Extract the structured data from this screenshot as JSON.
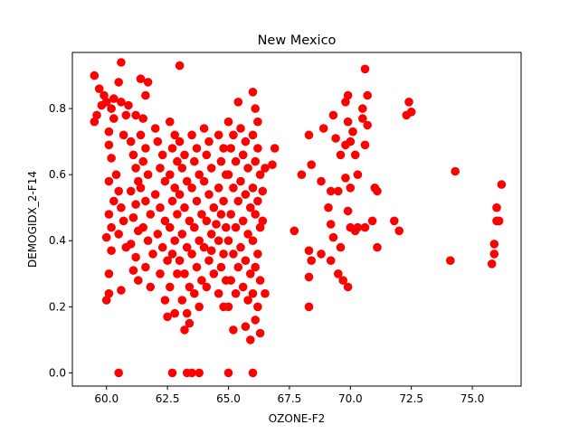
{
  "chart_data": {
    "type": "scatter",
    "title": "New Mexico",
    "xlabel": "OZONE-F2",
    "ylabel": "DEMOGIDX_2-F14",
    "xlim": [
      58.6,
      77.0
    ],
    "ylim": [
      -0.04,
      0.97
    ],
    "x_ticks": [
      60.0,
      62.5,
      65.0,
      67.5,
      70.0,
      72.5,
      75.0
    ],
    "x_tick_labels": [
      "60.0",
      "62.5",
      "65.0",
      "67.5",
      "70.0",
      "72.5",
      "75.0"
    ],
    "y_ticks": [
      0.0,
      0.2,
      0.4,
      0.6,
      0.8
    ],
    "y_tick_labels": [
      "0.0",
      "0.2",
      "0.4",
      "0.6",
      "0.8"
    ],
    "grid": false,
    "legend": "none",
    "marker_color": "#ff0000",
    "series": [
      {
        "points": [
          [
            59.5,
            0.9
          ],
          [
            59.6,
            0.78
          ],
          [
            59.7,
            0.86
          ],
          [
            59.8,
            0.81
          ],
          [
            59.9,
            0.84
          ],
          [
            60.0,
            0.82
          ],
          [
            60.2,
            0.8
          ],
          [
            60.3,
            0.83
          ],
          [
            60.5,
            0.88
          ],
          [
            60.6,
            0.94
          ],
          [
            60.3,
            0.77
          ],
          [
            60.1,
            0.69
          ],
          [
            60.8,
            0.78
          ],
          [
            60.9,
            0.81
          ],
          [
            60.7,
            0.72
          ],
          [
            61.2,
            0.78
          ],
          [
            61.4,
            0.89
          ],
          [
            61.6,
            0.84
          ],
          [
            61.7,
            0.88
          ],
          [
            61.5,
            0.77
          ],
          [
            63.0,
            0.93
          ],
          [
            60.6,
            0.82
          ],
          [
            59.5,
            0.76
          ],
          [
            60.1,
            0.73
          ],
          [
            60.2,
            0.65
          ],
          [
            60.1,
            0.58
          ],
          [
            60.3,
            0.52
          ],
          [
            60.1,
            0.48
          ],
          [
            60.2,
            0.44
          ],
          [
            60.0,
            0.41
          ],
          [
            60.2,
            0.37
          ],
          [
            60.1,
            0.3
          ],
          [
            60.1,
            0.24
          ],
          [
            60.0,
            0.22
          ],
          [
            60.4,
            0.6
          ],
          [
            60.5,
            0.55
          ],
          [
            60.6,
            0.5
          ],
          [
            60.7,
            0.46
          ],
          [
            60.5,
            0.42
          ],
          [
            60.8,
            0.38
          ],
          [
            60.6,
            0.25
          ],
          [
            61.0,
            0.7
          ],
          [
            61.1,
            0.66
          ],
          [
            61.2,
            0.62
          ],
          [
            61.3,
            0.58
          ],
          [
            61.0,
            0.55
          ],
          [
            61.2,
            0.51
          ],
          [
            61.1,
            0.47
          ],
          [
            61.3,
            0.43
          ],
          [
            61.0,
            0.39
          ],
          [
            61.2,
            0.35
          ],
          [
            61.1,
            0.31
          ],
          [
            61.3,
            0.28
          ],
          [
            61.4,
            0.72
          ],
          [
            61.6,
            0.68
          ],
          [
            61.5,
            0.64
          ],
          [
            61.7,
            0.6
          ],
          [
            61.4,
            0.56
          ],
          [
            61.6,
            0.52
          ],
          [
            61.8,
            0.48
          ],
          [
            61.5,
            0.44
          ],
          [
            61.7,
            0.4
          ],
          [
            61.9,
            0.36
          ],
          [
            61.6,
            0.32
          ],
          [
            61.8,
            0.26
          ],
          [
            62.0,
            0.74
          ],
          [
            62.1,
            0.7
          ],
          [
            62.3,
            0.66
          ],
          [
            62.2,
            0.62
          ],
          [
            62.4,
            0.58
          ],
          [
            62.0,
            0.54
          ],
          [
            62.2,
            0.5
          ],
          [
            62.4,
            0.46
          ],
          [
            62.1,
            0.42
          ],
          [
            62.3,
            0.38
          ],
          [
            62.5,
            0.34
          ],
          [
            62.2,
            0.3
          ],
          [
            62.4,
            0.22
          ],
          [
            62.6,
            0.76
          ],
          [
            62.8,
            0.72
          ],
          [
            62.7,
            0.68
          ],
          [
            62.9,
            0.64
          ],
          [
            62.6,
            0.6
          ],
          [
            62.8,
            0.56
          ],
          [
            62.7,
            0.52
          ],
          [
            62.9,
            0.48
          ],
          [
            62.6,
            0.44
          ],
          [
            62.8,
            0.4
          ],
          [
            62.7,
            0.36
          ],
          [
            62.9,
            0.3
          ],
          [
            62.6,
            0.26
          ],
          [
            62.8,
            0.18
          ],
          [
            62.5,
            0.17
          ],
          [
            63.0,
            0.7
          ],
          [
            63.2,
            0.66
          ],
          [
            63.1,
            0.62
          ],
          [
            63.3,
            0.58
          ],
          [
            63.0,
            0.54
          ],
          [
            63.2,
            0.5
          ],
          [
            63.4,
            0.46
          ],
          [
            63.1,
            0.42
          ],
          [
            63.3,
            0.38
          ],
          [
            63.0,
            0.34
          ],
          [
            63.2,
            0.3
          ],
          [
            63.4,
            0.26
          ],
          [
            63.1,
            0.22
          ],
          [
            63.3,
            0.18
          ],
          [
            63.2,
            0.13
          ],
          [
            63.5,
            0.72
          ],
          [
            63.7,
            0.68
          ],
          [
            63.6,
            0.64
          ],
          [
            63.8,
            0.6
          ],
          [
            63.5,
            0.56
          ],
          [
            63.7,
            0.52
          ],
          [
            63.9,
            0.48
          ],
          [
            63.6,
            0.44
          ],
          [
            63.8,
            0.4
          ],
          [
            63.5,
            0.36
          ],
          [
            63.7,
            0.32
          ],
          [
            63.9,
            0.28
          ],
          [
            63.6,
            0.24
          ],
          [
            63.8,
            0.2
          ],
          [
            63.4,
            0.15
          ],
          [
            64.0,
            0.74
          ],
          [
            64.2,
            0.7
          ],
          [
            64.1,
            0.66
          ],
          [
            64.3,
            0.62
          ],
          [
            64.0,
            0.58
          ],
          [
            64.2,
            0.54
          ],
          [
            64.4,
            0.5
          ],
          [
            64.1,
            0.46
          ],
          [
            64.3,
            0.42
          ],
          [
            64.0,
            0.38
          ],
          [
            64.2,
            0.34
          ],
          [
            64.4,
            0.3
          ],
          [
            64.1,
            0.26
          ],
          [
            64.6,
            0.72
          ],
          [
            64.8,
            0.68
          ],
          [
            64.7,
            0.64
          ],
          [
            64.9,
            0.6
          ],
          [
            64.6,
            0.56
          ],
          [
            64.8,
            0.52
          ],
          [
            64.7,
            0.48
          ],
          [
            64.9,
            0.44
          ],
          [
            64.6,
            0.4
          ],
          [
            64.8,
            0.36
          ],
          [
            64.7,
            0.32
          ],
          [
            64.9,
            0.28
          ],
          [
            64.6,
            0.24
          ],
          [
            64.8,
            0.2
          ],
          [
            64.3,
            0.37
          ],
          [
            64.5,
            0.45
          ],
          [
            65.0,
            0.76
          ],
          [
            65.2,
            0.72
          ],
          [
            65.1,
            0.68
          ],
          [
            65.3,
            0.64
          ],
          [
            65.0,
            0.6
          ],
          [
            65.2,
            0.56
          ],
          [
            65.4,
            0.52
          ],
          [
            65.1,
            0.48
          ],
          [
            65.3,
            0.44
          ],
          [
            65.0,
            0.4
          ],
          [
            65.2,
            0.36
          ],
          [
            65.4,
            0.32
          ],
          [
            65.1,
            0.28
          ],
          [
            65.3,
            0.24
          ],
          [
            65.0,
            0.2
          ],
          [
            65.2,
            0.13
          ],
          [
            65.5,
            0.74
          ],
          [
            65.7,
            0.7
          ],
          [
            65.6,
            0.66
          ],
          [
            65.8,
            0.62
          ],
          [
            65.5,
            0.58
          ],
          [
            65.7,
            0.54
          ],
          [
            65.9,
            0.5
          ],
          [
            65.6,
            0.46
          ],
          [
            65.8,
            0.42
          ],
          [
            65.5,
            0.38
          ],
          [
            65.7,
            0.34
          ],
          [
            65.9,
            0.3
          ],
          [
            65.6,
            0.26
          ],
          [
            65.8,
            0.22
          ],
          [
            65.7,
            0.14
          ],
          [
            65.9,
            0.1
          ],
          [
            65.4,
            0.82
          ],
          [
            66.0,
            0.85
          ],
          [
            66.1,
            0.8
          ],
          [
            66.2,
            0.76
          ],
          [
            66.0,
            0.72
          ],
          [
            66.2,
            0.68
          ],
          [
            66.1,
            0.64
          ],
          [
            66.3,
            0.6
          ],
          [
            66.0,
            0.56
          ],
          [
            66.2,
            0.52
          ],
          [
            66.1,
            0.48
          ],
          [
            66.3,
            0.44
          ],
          [
            66.0,
            0.4
          ],
          [
            66.2,
            0.36
          ],
          [
            66.1,
            0.32
          ],
          [
            66.3,
            0.28
          ],
          [
            66.0,
            0.24
          ],
          [
            66.2,
            0.2
          ],
          [
            66.1,
            0.16
          ],
          [
            66.3,
            0.12
          ],
          [
            66.5,
            0.62
          ],
          [
            66.4,
            0.46
          ],
          [
            66.5,
            0.24
          ],
          [
            66.8,
            0.63
          ],
          [
            66.9,
            0.68
          ],
          [
            66.4,
            0.55
          ],
          [
            67.7,
            0.43
          ],
          [
            68.0,
            0.6
          ],
          [
            68.3,
            0.72
          ],
          [
            68.4,
            0.63
          ],
          [
            68.3,
            0.37
          ],
          [
            68.4,
            0.34
          ],
          [
            68.3,
            0.29
          ],
          [
            68.3,
            0.2
          ],
          [
            68.8,
            0.58
          ],
          [
            68.8,
            0.36
          ],
          [
            68.9,
            0.74
          ],
          [
            69.3,
            0.78
          ],
          [
            69.2,
            0.55
          ],
          [
            69.1,
            0.5
          ],
          [
            69.2,
            0.45
          ],
          [
            69.3,
            0.41
          ],
          [
            69.2,
            0.34
          ],
          [
            69.4,
            0.71
          ],
          [
            69.5,
            0.55
          ],
          [
            69.6,
            0.66
          ],
          [
            69.6,
            0.38
          ],
          [
            69.5,
            0.3
          ],
          [
            69.7,
            0.28
          ],
          [
            69.8,
            0.69
          ],
          [
            69.8,
            0.82
          ],
          [
            69.9,
            0.84
          ],
          [
            69.9,
            0.76
          ],
          [
            69.8,
            0.59
          ],
          [
            69.9,
            0.49
          ],
          [
            70.0,
            0.44
          ],
          [
            70.0,
            0.56
          ],
          [
            69.9,
            0.26
          ],
          [
            70.0,
            0.7
          ],
          [
            70.1,
            0.73
          ],
          [
            70.2,
            0.66
          ],
          [
            70.3,
            0.6
          ],
          [
            70.2,
            0.43
          ],
          [
            70.3,
            0.44
          ],
          [
            70.5,
            0.8
          ],
          [
            70.5,
            0.77
          ],
          [
            70.6,
            0.92
          ],
          [
            70.7,
            0.84
          ],
          [
            70.6,
            0.69
          ],
          [
            70.6,
            0.44
          ],
          [
            70.7,
            0.75
          ],
          [
            71.0,
            0.56
          ],
          [
            71.1,
            0.55
          ],
          [
            71.1,
            0.38
          ],
          [
            70.9,
            0.46
          ],
          [
            71.8,
            0.46
          ],
          [
            72.0,
            0.43
          ],
          [
            72.3,
            0.78
          ],
          [
            72.4,
            0.82
          ],
          [
            72.5,
            0.79
          ],
          [
            74.1,
            0.34
          ],
          [
            74.3,
            0.61
          ],
          [
            75.8,
            0.33
          ],
          [
            75.9,
            0.39
          ],
          [
            75.9,
            0.36
          ],
          [
            76.0,
            0.5
          ],
          [
            76.1,
            0.46
          ],
          [
            76.0,
            0.46
          ],
          [
            76.2,
            0.57
          ],
          [
            60.5,
            0.0
          ],
          [
            62.7,
            0.0
          ],
          [
            63.3,
            0.0
          ],
          [
            63.5,
            0.0
          ],
          [
            63.8,
            0.0
          ],
          [
            65.0,
            0.0
          ],
          [
            66.0,
            0.0
          ]
        ]
      }
    ]
  }
}
